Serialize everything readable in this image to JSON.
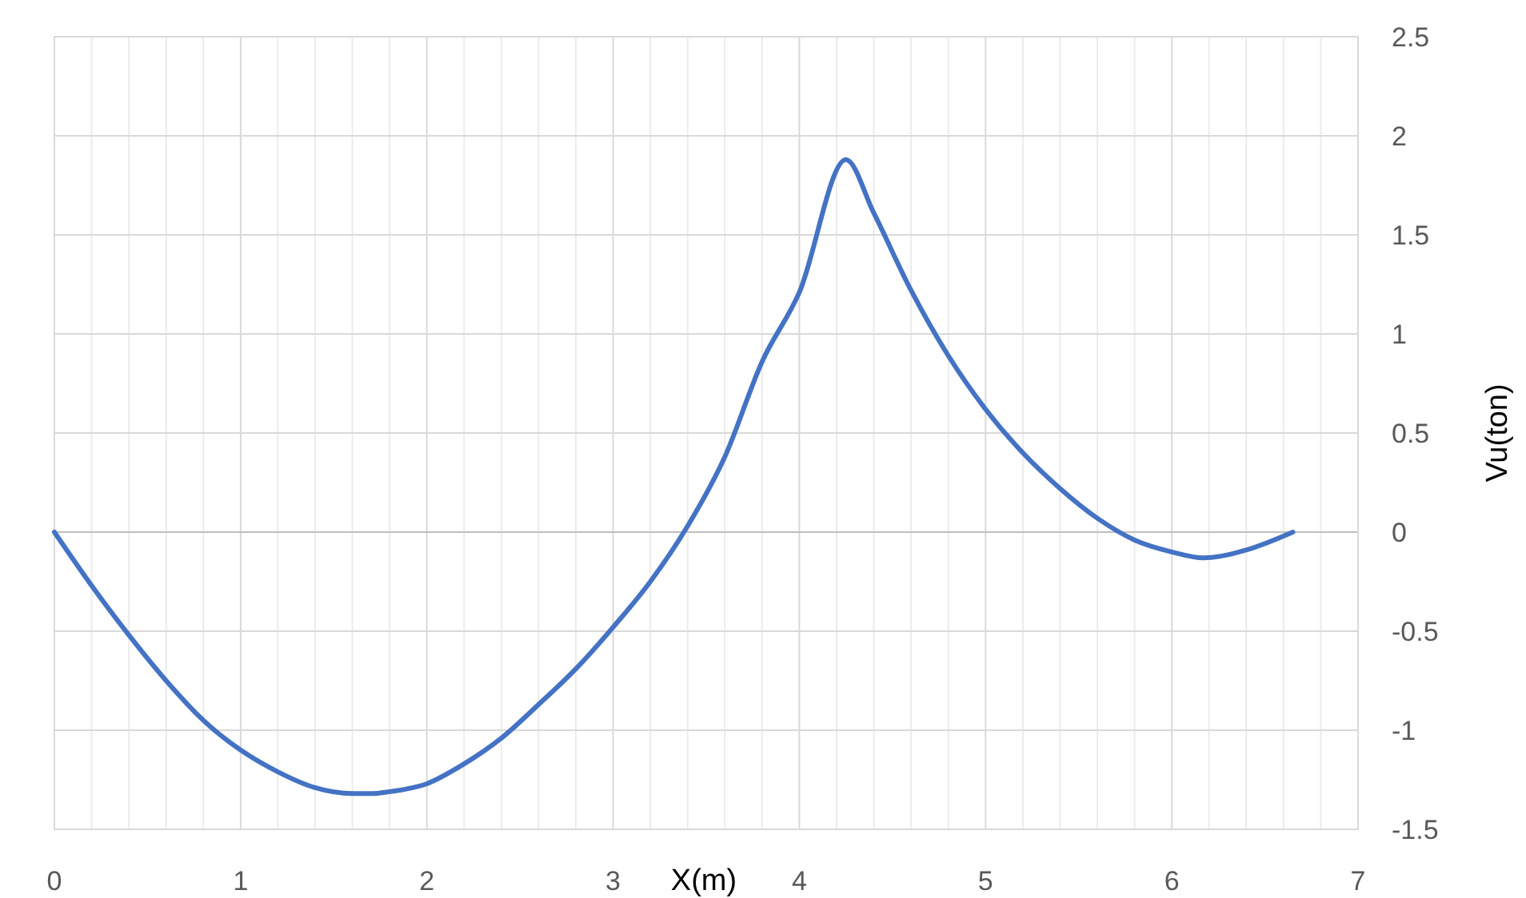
{
  "chart_data": {
    "type": "line",
    "xlabel": "X(m)",
    "ylabel": "Vu(ton)",
    "series": [
      {
        "color": "#4472c4",
        "x": [
          0,
          0.2,
          0.4,
          0.6,
          0.8,
          1.0,
          1.2,
          1.4,
          1.6,
          1.7,
          1.8,
          2.0,
          2.2,
          2.4,
          2.6,
          2.8,
          3.0,
          3.2,
          3.4,
          3.6,
          3.8,
          4.0,
          4.25,
          4.4,
          4.6,
          4.8,
          5.0,
          5.2,
          5.4,
          5.6,
          5.8,
          6.0,
          6.17,
          6.4,
          6.65
        ],
        "values": [
          0,
          -0.27,
          -0.52,
          -0.75,
          -0.95,
          -1.1,
          -1.21,
          -1.29,
          -1.32,
          -1.32,
          -1.31,
          -1.27,
          -1.17,
          -1.04,
          -0.87,
          -0.69,
          -0.48,
          -0.25,
          0.03,
          0.38,
          0.86,
          1.21,
          1.88,
          1.61,
          1.22,
          0.89,
          0.62,
          0.4,
          0.22,
          0.07,
          -0.04,
          -0.1,
          -0.13,
          -0.09,
          0
        ]
      }
    ],
    "xlim": [
      0,
      7
    ],
    "xticks": [
      0,
      {
        "value": 0.2,
        "label": null
      },
      {
        "value": 0.4,
        "label": null
      },
      {
        "value": 0.6,
        "label": null
      },
      {
        "value": 0.8,
        "label": null
      },
      1,
      {
        "value": 1.2,
        "label": null
      },
      {
        "value": 1.4,
        "label": null
      },
      {
        "value": 1.6,
        "label": null
      },
      {
        "value": 1.8,
        "label": null
      },
      2,
      {
        "value": 2.2,
        "label": null
      },
      {
        "value": 2.4,
        "label": null
      },
      {
        "value": 2.6,
        "label": null
      },
      {
        "value": 2.8,
        "label": null
      },
      3,
      {
        "value": 3.2,
        "label": null
      },
      {
        "value": 3.4,
        "label": null
      },
      {
        "value": 3.6,
        "label": null
      },
      {
        "value": 3.8,
        "label": null
      },
      4,
      {
        "value": 4.2,
        "label": null
      },
      {
        "value": 4.4,
        "label": null
      },
      {
        "value": 4.6,
        "label": null
      },
      {
        "value": 4.8,
        "label": null
      },
      5,
      {
        "value": 5.2,
        "label": null
      },
      {
        "value": 5.4,
        "label": null
      },
      {
        "value": 5.6,
        "label": null
      },
      {
        "value": 5.8,
        "label": null
      },
      6,
      {
        "value": 6.2,
        "label": null
      },
      {
        "value": 6.4,
        "label": null
      },
      {
        "value": 6.6,
        "label": null
      },
      {
        "value": 6.8,
        "label": null
      },
      7
    ],
    "ylim": [
      -1.5,
      2.5
    ],
    "yticks": [
      -1.5,
      -1,
      -0.5,
      0,
      0.5,
      1,
      1.5,
      2,
      2.5
    ],
    "grid": true,
    "line_style": "solid",
    "marker": "none"
  }
}
